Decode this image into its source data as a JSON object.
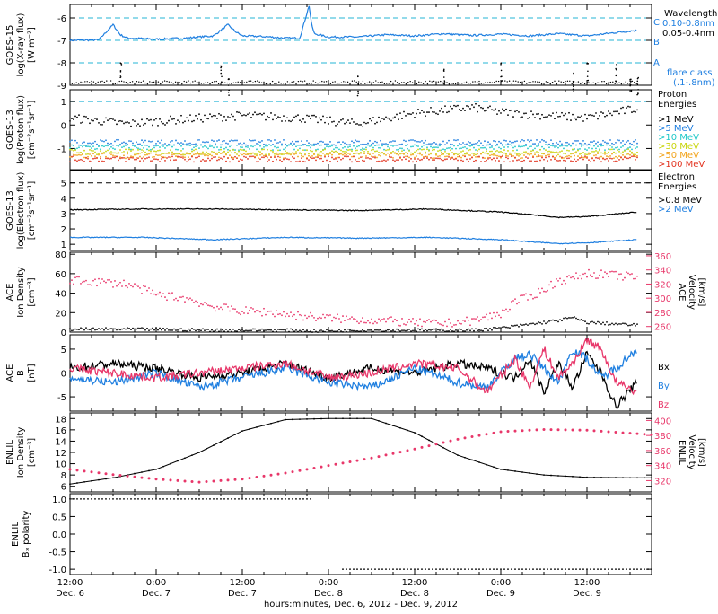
{
  "colors": {
    "axis": "#000000",
    "blue": "#1f7fe0",
    "cyan_dashed": "#26b5d6",
    "pink": "#e8376a",
    "proton_1": "#000000",
    "proton_5": "#1f7fe0",
    "proton_10": "#1fc8c8",
    "proton_30": "#c8d40a",
    "proton_50": "#f2a31a",
    "proton_100": "#e2331f"
  },
  "x_axis": {
    "tick_labels": [
      {
        "time": "12:00",
        "date": "Dec. 6"
      },
      {
        "time": "0:00",
        "date": "Dec. 7"
      },
      {
        "time": "12:00",
        "date": "Dec. 7"
      },
      {
        "time": "0:00",
        "date": "Dec. 8"
      },
      {
        "time": "12:00",
        "date": "Dec. 8"
      },
      {
        "time": "0:00",
        "date": "Dec. 9"
      },
      {
        "time": "12:00",
        "date": "Dec. 9"
      }
    ],
    "label": "hours:minutes, Dec. 6, 2012 - Dec. 9, 2012",
    "range_hours": [
      0,
      81
    ]
  },
  "chart_data": [
    {
      "type": "line",
      "panel": "goes15_xray",
      "ylabel_lines": [
        "GOES-15",
        "log(X-ray flux)",
        "[W m⁻²]"
      ],
      "ylim": [
        -9,
        -5.4
      ],
      "yticks": [
        -6,
        -7,
        -8,
        -9
      ],
      "right_legend": {
        "title": "Wavelength",
        "entries": [
          {
            "label": "0.10-0.8nm",
            "color": "#1f7fe0"
          },
          {
            "label": "0.05-0.4nm",
            "color": "#000000"
          }
        ],
        "flare_classes": [
          {
            "label": "C",
            "level": -6
          },
          {
            "label": "B",
            "level": -7
          },
          {
            "label": "A",
            "level": -8
          }
        ],
        "flare_class_note": [
          "flare class",
          "(.1-.8nm)"
        ]
      },
      "series": [
        {
          "name": "0.10-0.8nm",
          "x": [
            0,
            4,
            6,
            7,
            8,
            10,
            12,
            16,
            20,
            22,
            23,
            24,
            26,
            28,
            30,
            32,
            33.3,
            33.6,
            34,
            36,
            40,
            44,
            48,
            52,
            56,
            60,
            64,
            68,
            72,
            76,
            79
          ],
          "y": [
            -7.0,
            -6.98,
            -6.3,
            -6.75,
            -6.9,
            -6.92,
            -6.95,
            -6.9,
            -6.8,
            -6.3,
            -6.6,
            -6.8,
            -6.82,
            -6.85,
            -6.9,
            -6.9,
            -5.45,
            -6.2,
            -6.7,
            -6.85,
            -6.85,
            -6.75,
            -6.8,
            -6.7,
            -6.78,
            -6.72,
            -6.8,
            -6.7,
            -6.8,
            -6.65,
            -6.55
          ]
        },
        {
          "name": "0.05-0.4nm",
          "x": [
            0,
            6,
            7,
            8,
            10,
            20,
            21,
            22,
            24,
            34,
            40,
            48,
            52,
            56,
            60,
            64,
            70,
            72,
            74,
            76,
            78,
            79
          ],
          "y": [
            -8.9,
            -8.8,
            -8.0,
            -8.8,
            -8.9,
            -8.9,
            -8.0,
            -8.6,
            -8.9,
            -8.9,
            -8.6,
            -8.9,
            -8.2,
            -8.9,
            -8.0,
            -8.9,
            -8.4,
            -8.0,
            -8.9,
            -8.0,
            -8.5,
            -8.6
          ]
        }
      ]
    },
    {
      "type": "scatter",
      "panel": "goes13_proton",
      "ylabel_lines": [
        "GOES-13",
        "log(Proton flux)",
        "[cm⁻²s⁻¹sr⁻¹]"
      ],
      "ylim": [
        -1.9,
        1.5
      ],
      "yticks": [
        1,
        0,
        -1
      ],
      "reference_line": 1,
      "right_legend": {
        "title": [
          "Proton",
          "Energies"
        ]
      },
      "series": [
        {
          "name": ">1 MeV",
          "x": [
            0,
            8,
            16,
            24,
            32,
            40,
            48,
            56,
            60,
            64,
            72,
            79
          ],
          "y": [
            0.3,
            0.05,
            0.25,
            0.4,
            0.3,
            0.05,
            0.5,
            0.75,
            0.55,
            0.45,
            0.3,
            0.7
          ]
        },
        {
          "name": ">5 MeV",
          "x": [
            0,
            79
          ],
          "y": [
            -0.75,
            -0.75
          ]
        },
        {
          "name": ">10 MeV",
          "x": [
            0,
            79
          ],
          "y": [
            -0.95,
            -0.95
          ]
        },
        {
          "name": ">30 MeV",
          "x": [
            0,
            79
          ],
          "y": [
            -1.15,
            -1.15
          ]
        },
        {
          "name": ">50 MeV",
          "x": [
            0,
            79
          ],
          "y": [
            -1.3,
            -1.3
          ]
        },
        {
          "name": ">100 MeV",
          "x": [
            0,
            79
          ],
          "y": [
            -1.45,
            -1.45
          ]
        }
      ]
    },
    {
      "type": "line",
      "panel": "goes13_electron",
      "ylabel_lines": [
        "GOES-13",
        "log(Electron flux)",
        "[cm⁻²s⁻¹sr⁻¹]"
      ],
      "ylim": [
        0.6,
        5.8
      ],
      "yticks": [
        5,
        4,
        3,
        2,
        1
      ],
      "reference_line": 5,
      "right_legend": {
        "title": [
          "Electron",
          "Energies"
        ]
      },
      "series": [
        {
          "name": ">0.8 MeV",
          "x": [
            0,
            10,
            20,
            30,
            40,
            50,
            60,
            66,
            68,
            72,
            79
          ],
          "y": [
            3.25,
            3.3,
            3.3,
            3.25,
            3.2,
            3.3,
            3.1,
            2.85,
            2.75,
            2.8,
            3.1
          ]
        },
        {
          "name": ">2 MeV",
          "x": [
            0,
            10,
            20,
            30,
            40,
            50,
            60,
            66,
            68,
            72,
            79
          ],
          "y": [
            1.45,
            1.45,
            1.3,
            1.45,
            1.4,
            1.45,
            1.3,
            1.1,
            1.05,
            1.1,
            1.3
          ]
        }
      ]
    },
    {
      "type": "scatter",
      "panel": "ace_density_velocity",
      "ylabel_lines": [
        "ACE",
        "Ion Density",
        "[cm⁻³]"
      ],
      "ylim": [
        0,
        82
      ],
      "yticks": [
        0,
        20,
        40,
        60,
        80
      ],
      "right_ylabel_lines": [
        "ACE",
        "Velocity",
        "[km/s]"
      ],
      "right_ylim": [
        252,
        365
      ],
      "right_yticks": [
        260,
        280,
        300,
        320,
        340,
        360
      ],
      "series": [
        {
          "name": "Ion Density",
          "axis": "left",
          "x": [
            0,
            10,
            20,
            30,
            35,
            40,
            48,
            56,
            60,
            64,
            68,
            70,
            72,
            79
          ],
          "y": [
            3,
            3,
            2,
            2,
            1,
            2,
            2,
            2,
            4,
            8,
            12,
            15,
            10,
            7
          ]
        },
        {
          "name": "Velocity",
          "axis": "right",
          "x": [
            0,
            4,
            8,
            12,
            16,
            20,
            24,
            28,
            32,
            36,
            40,
            44,
            48,
            52,
            56,
            60,
            62,
            64,
            66,
            68,
            70,
            72,
            76,
            79
          ],
          "y": [
            325,
            323,
            320,
            305,
            300,
            288,
            282,
            280,
            275,
            272,
            270,
            268,
            265,
            264,
            268,
            278,
            295,
            302,
            312,
            325,
            328,
            335,
            332,
            330
          ]
        }
      ]
    },
    {
      "type": "line",
      "panel": "ace_b",
      "ylabel_lines": [
        "ACE",
        "B",
        "[nT]"
      ],
      "ylim": [
        -8,
        8
      ],
      "yticks": [
        5,
        0,
        -5
      ],
      "right_legend": {
        "entries": [
          {
            "label": "Bx",
            "color": "#000000"
          },
          {
            "label": "By",
            "color": "#1f7fe0"
          },
          {
            "label": "Bz",
            "color": "#e8376a"
          }
        ]
      },
      "series": [
        {
          "name": "Bx",
          "x": [
            0,
            6,
            12,
            18,
            24,
            30,
            36,
            42,
            48,
            54,
            58,
            62,
            64,
            66,
            68,
            70,
            72,
            74,
            76,
            79
          ],
          "y": [
            1,
            2,
            1,
            -1,
            0,
            2,
            -1,
            1,
            0,
            2,
            1,
            -1,
            3,
            -4,
            2,
            -3,
            4,
            0,
            -7,
            -2
          ]
        },
        {
          "name": "By",
          "x": [
            0,
            6,
            12,
            18,
            24,
            30,
            36,
            42,
            48,
            54,
            58,
            62,
            64,
            66,
            68,
            70,
            72,
            74,
            76,
            79
          ],
          "y": [
            -1,
            -2,
            0,
            -3,
            -1,
            1,
            -2,
            -3,
            1,
            -2,
            -3,
            3,
            4,
            1,
            -2,
            5,
            3,
            -1,
            1,
            5
          ]
        },
        {
          "name": "Bz",
          "x": [
            0,
            6,
            12,
            18,
            24,
            30,
            36,
            42,
            48,
            54,
            58,
            62,
            64,
            66,
            68,
            70,
            72,
            74,
            76,
            79
          ],
          "y": [
            1,
            0,
            -1,
            0,
            1,
            2,
            -1,
            0,
            2,
            1,
            -4,
            3,
            -3,
            5,
            -1,
            2,
            7,
            5,
            -2,
            -4
          ]
        }
      ]
    },
    {
      "type": "line",
      "panel": "enlil_density_velocity",
      "ylabel_lines": [
        "ENLIL",
        "Ion Density",
        "[cm⁻³]"
      ],
      "ylim": [
        5,
        19
      ],
      "yticks": [
        6,
        8,
        10,
        12,
        14,
        16,
        18
      ],
      "right_ylabel_lines": [
        "ENLIL",
        "Velocity",
        "[km/s]"
      ],
      "right_ylim": [
        305,
        410
      ],
      "right_yticks": [
        320,
        340,
        360,
        380,
        400
      ],
      "series": [
        {
          "name": "Ion Density",
          "axis": "left",
          "x": [
            0,
            6,
            12,
            18,
            24,
            30,
            36,
            42,
            48,
            54,
            60,
            66,
            72,
            78,
            81
          ],
          "y": [
            6.4,
            7.5,
            9,
            12,
            15.8,
            17.8,
            18,
            18,
            15.5,
            11.5,
            9,
            8,
            7.6,
            7.5,
            7.5
          ]
        },
        {
          "name": "Velocity",
          "axis": "right",
          "x": [
            0,
            6,
            12,
            18,
            24,
            30,
            36,
            42,
            48,
            54,
            60,
            66,
            72,
            78,
            81
          ],
          "y": [
            335,
            328,
            322,
            318,
            322,
            330,
            340,
            350,
            362,
            375,
            385,
            388,
            387,
            383,
            381
          ]
        }
      ]
    },
    {
      "type": "line",
      "panel": "enlil_polarity",
      "ylabel_lines": [
        "ENLIL",
        "Bₓ polarity"
      ],
      "ylim": [
        -1.15,
        1.15
      ],
      "yticks": [
        1.0,
        0.5,
        0.0,
        -0.5,
        -1.0
      ],
      "ytick_labels": [
        "1.0",
        "0.5",
        "0.0",
        "-0.5",
        "-1.0"
      ],
      "series": [
        {
          "name": "Bx polarity",
          "x": [
            0,
            33.5,
            33.51,
            81
          ],
          "y": [
            1,
            1,
            -1,
            -1
          ]
        }
      ]
    }
  ],
  "texts": {
    "xray_wavelength": "Wavelength",
    "xray_c": "C",
    "xray_b": "B",
    "xray_a": "A",
    "xray_leg1": "0.10-0.8nm",
    "xray_leg2": "0.05-0.4nm",
    "flare1": "flare class",
    "flare2": "(.1-.8nm)",
    "proton_t1": "Proton",
    "proton_t2": "Energies",
    "p1": ">1 MeV",
    "p5": ">5 MeV",
    "p10": ">10 MeV",
    "p30": ">30 MeV",
    "p50": ">50 MeV",
    "p100": ">100 MeV",
    "elec_t1": "Electron",
    "elec_t2": "Energies",
    "e08": ">0.8 MeV",
    "e2": ">2 MeV",
    "bx": "Bx",
    "by": "By",
    "bz": "Bz"
  }
}
